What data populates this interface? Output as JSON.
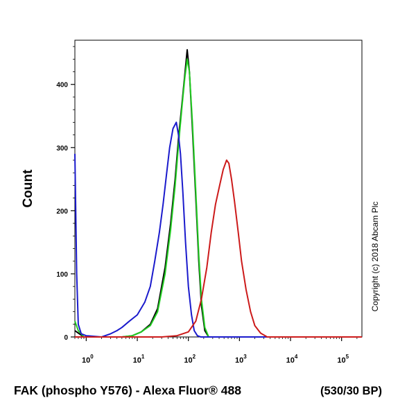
{
  "chart_data": {
    "type": "line",
    "xlabel": "FAK (phospho Y576) - Alexa Fluor® 488",
    "xlabel_suffix": "(530/30 BP)",
    "ylabel": "Count",
    "x_scale": "log",
    "xlim": [
      0.6,
      250000
    ],
    "ylim": [
      0,
      470
    ],
    "x_ticks": [
      {
        "value": 1,
        "base": "10",
        "exp": "0"
      },
      {
        "value": 10,
        "base": "10",
        "exp": "1"
      },
      {
        "value": 100,
        "base": "10",
        "exp": "2"
      },
      {
        "value": 1000,
        "base": "10",
        "exp": "3"
      },
      {
        "value": 10000,
        "base": "10",
        "exp": "4"
      },
      {
        "value": 100000,
        "base": "10",
        "exp": "5"
      }
    ],
    "y_ticks": [
      {
        "value": 0,
        "label": "0"
      },
      {
        "value": 100,
        "label": "100"
      },
      {
        "value": 200,
        "label": "200"
      },
      {
        "value": 300,
        "label": "300"
      },
      {
        "value": 400,
        "label": "400"
      }
    ],
    "grid": false,
    "legend": "none",
    "annotations": [
      "Copyright (c) 2018 Abcam Plc"
    ],
    "series": [
      {
        "color": "#000000",
        "points": [
          [
            0.6,
            10
          ],
          [
            0.9,
            0
          ],
          [
            5,
            0
          ],
          [
            8,
            2
          ],
          [
            12,
            8
          ],
          [
            18,
            20
          ],
          [
            25,
            45
          ],
          [
            35,
            110
          ],
          [
            45,
            180
          ],
          [
            55,
            250
          ],
          [
            65,
            320
          ],
          [
            75,
            370
          ],
          [
            85,
            415
          ],
          [
            95,
            455
          ],
          [
            105,
            420
          ],
          [
            120,
            330
          ],
          [
            140,
            220
          ],
          [
            160,
            120
          ],
          [
            180,
            50
          ],
          [
            210,
            10
          ],
          [
            250,
            0
          ],
          [
            250000,
            0
          ]
        ]
      },
      {
        "color": "#22cc22",
        "points": [
          [
            0.6,
            25
          ],
          [
            0.7,
            10
          ],
          [
            0.9,
            0
          ],
          [
            5,
            0
          ],
          [
            8,
            2
          ],
          [
            12,
            8
          ],
          [
            18,
            18
          ],
          [
            25,
            40
          ],
          [
            35,
            100
          ],
          [
            45,
            170
          ],
          [
            55,
            240
          ],
          [
            65,
            310
          ],
          [
            75,
            365
          ],
          [
            85,
            410
          ],
          [
            95,
            440
          ],
          [
            105,
            420
          ],
          [
            120,
            340
          ],
          [
            140,
            230
          ],
          [
            160,
            130
          ],
          [
            180,
            60
          ],
          [
            210,
            15
          ],
          [
            250,
            0
          ],
          [
            250000,
            0
          ]
        ]
      },
      {
        "color": "#1a1acc",
        "points": [
          [
            0.6,
            290
          ],
          [
            0.65,
            100
          ],
          [
            0.7,
            20
          ],
          [
            0.8,
            5
          ],
          [
            1,
            2
          ],
          [
            2,
            0
          ],
          [
            3,
            5
          ],
          [
            4,
            10
          ],
          [
            5,
            15
          ],
          [
            7,
            25
          ],
          [
            10,
            35
          ],
          [
            14,
            55
          ],
          [
            18,
            80
          ],
          [
            22,
            120
          ],
          [
            27,
            165
          ],
          [
            32,
            210
          ],
          [
            37,
            255
          ],
          [
            43,
            300
          ],
          [
            50,
            330
          ],
          [
            58,
            340
          ],
          [
            64,
            320
          ],
          [
            70,
            290
          ],
          [
            78,
            230
          ],
          [
            88,
            150
          ],
          [
            100,
            80
          ],
          [
            115,
            35
          ],
          [
            130,
            10
          ],
          [
            150,
            2
          ],
          [
            175,
            0
          ],
          [
            250000,
            0
          ]
        ]
      },
      {
        "color": "#cc1a1a",
        "points": [
          [
            0.6,
            0
          ],
          [
            30,
            0
          ],
          [
            60,
            2
          ],
          [
            100,
            8
          ],
          [
            140,
            25
          ],
          [
            180,
            60
          ],
          [
            230,
            110
          ],
          [
            280,
            165
          ],
          [
            340,
            210
          ],
          [
            410,
            240
          ],
          [
            480,
            265
          ],
          [
            560,
            280
          ],
          [
            620,
            275
          ],
          [
            700,
            250
          ],
          [
            800,
            215
          ],
          [
            950,
            165
          ],
          [
            1100,
            120
          ],
          [
            1350,
            75
          ],
          [
            1650,
            40
          ],
          [
            2000,
            18
          ],
          [
            2600,
            6
          ],
          [
            3500,
            0
          ],
          [
            250000,
            0
          ]
        ]
      }
    ]
  }
}
